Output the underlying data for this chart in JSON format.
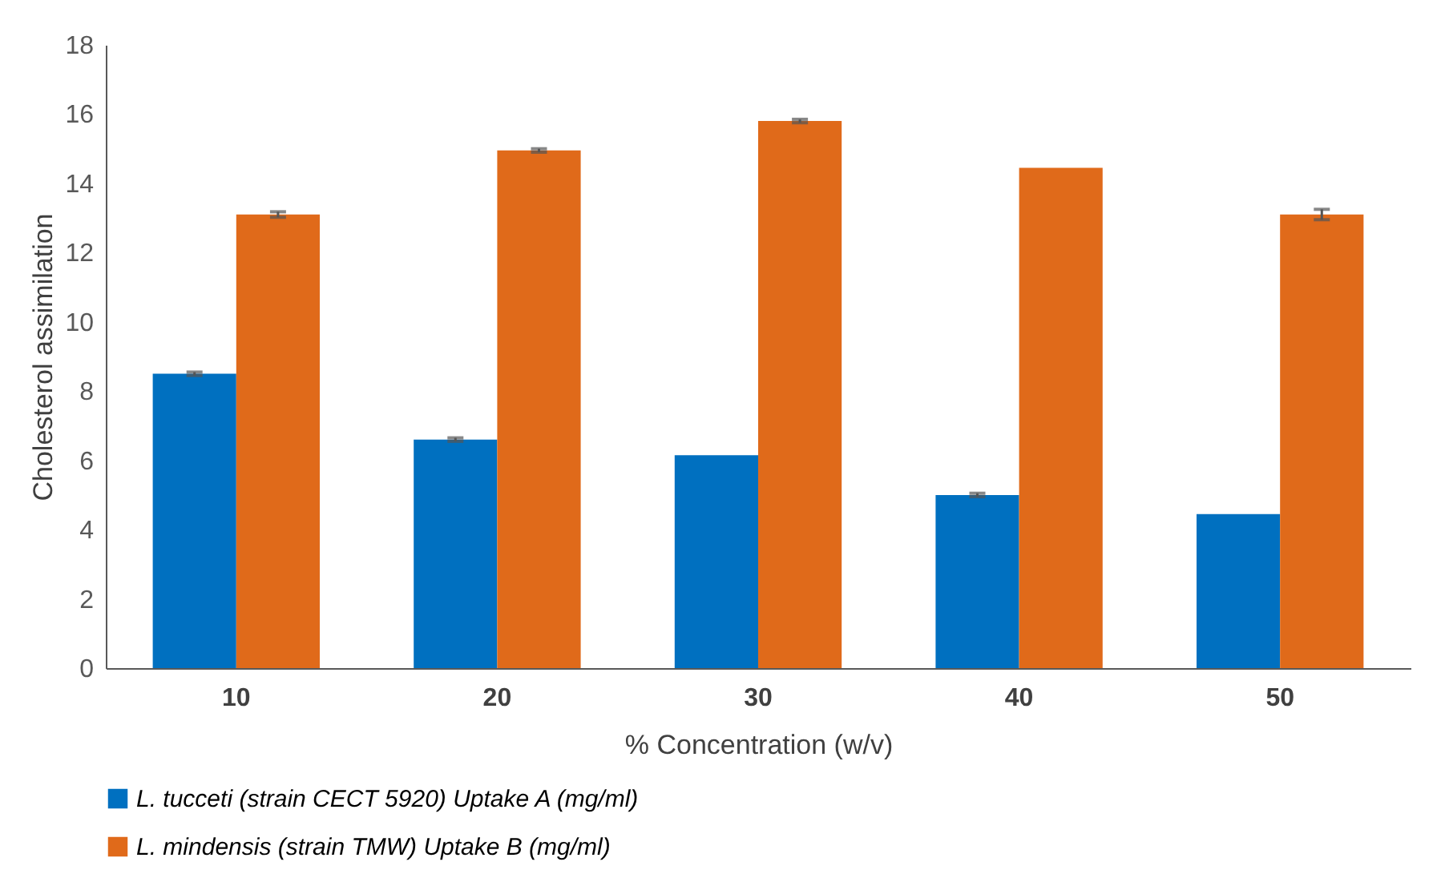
{
  "chart_data": {
    "type": "bar",
    "xlabel": "% Concentration (w/v)",
    "ylabel": "Cholesterol assimilation",
    "categories": [
      "10",
      "20",
      "30",
      "40",
      "50"
    ],
    "series": [
      {
        "name": "L.  tucceti (strain CECT 5920) Uptake A (mg/ml)",
        "color": "#0070c0",
        "values": [
          8.5,
          6.6,
          6.15,
          5.0,
          4.45
        ],
        "errors": [
          0.05,
          0.05,
          null,
          0.05,
          null
        ]
      },
      {
        "name": "L. mindensis (strain TMW) Uptake B (mg/ml)",
        "color": "#e06a1a",
        "values": [
          13.1,
          14.95,
          15.8,
          14.45,
          13.1
        ],
        "errors": [
          0.08,
          0.05,
          0.05,
          null,
          0.15
        ]
      }
    ],
    "ylim": [
      0,
      18
    ],
    "yticks": [
      0,
      2,
      4,
      6,
      8,
      10,
      12,
      14,
      16,
      18
    ],
    "grid": false,
    "legend": "bottom"
  }
}
